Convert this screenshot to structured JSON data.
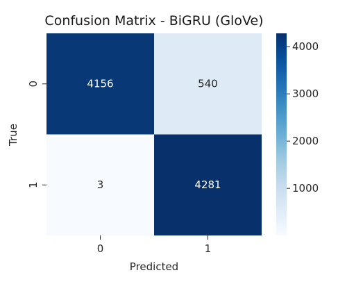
{
  "chart_data": {
    "type": "heatmap",
    "title": "Confusion Matrix - BiGRU (GloVe)",
    "xlabel": "Predicted",
    "ylabel": "True",
    "x_categories": [
      "0",
      "1"
    ],
    "y_categories": [
      "0",
      "1"
    ],
    "values": [
      [
        4156,
        540
      ],
      [
        3,
        4281
      ]
    ],
    "colormap": "Blues",
    "color_range": [
      3,
      4281
    ],
    "colorbar_ticks": [
      1000,
      2000,
      3000,
      4000
    ],
    "colorbar_tick_labels": [
      "1000",
      "2000",
      "3000",
      "4000"
    ],
    "annotation_colors": {
      "dark_cell": "#ffffff",
      "light_cell": "#262626"
    }
  }
}
